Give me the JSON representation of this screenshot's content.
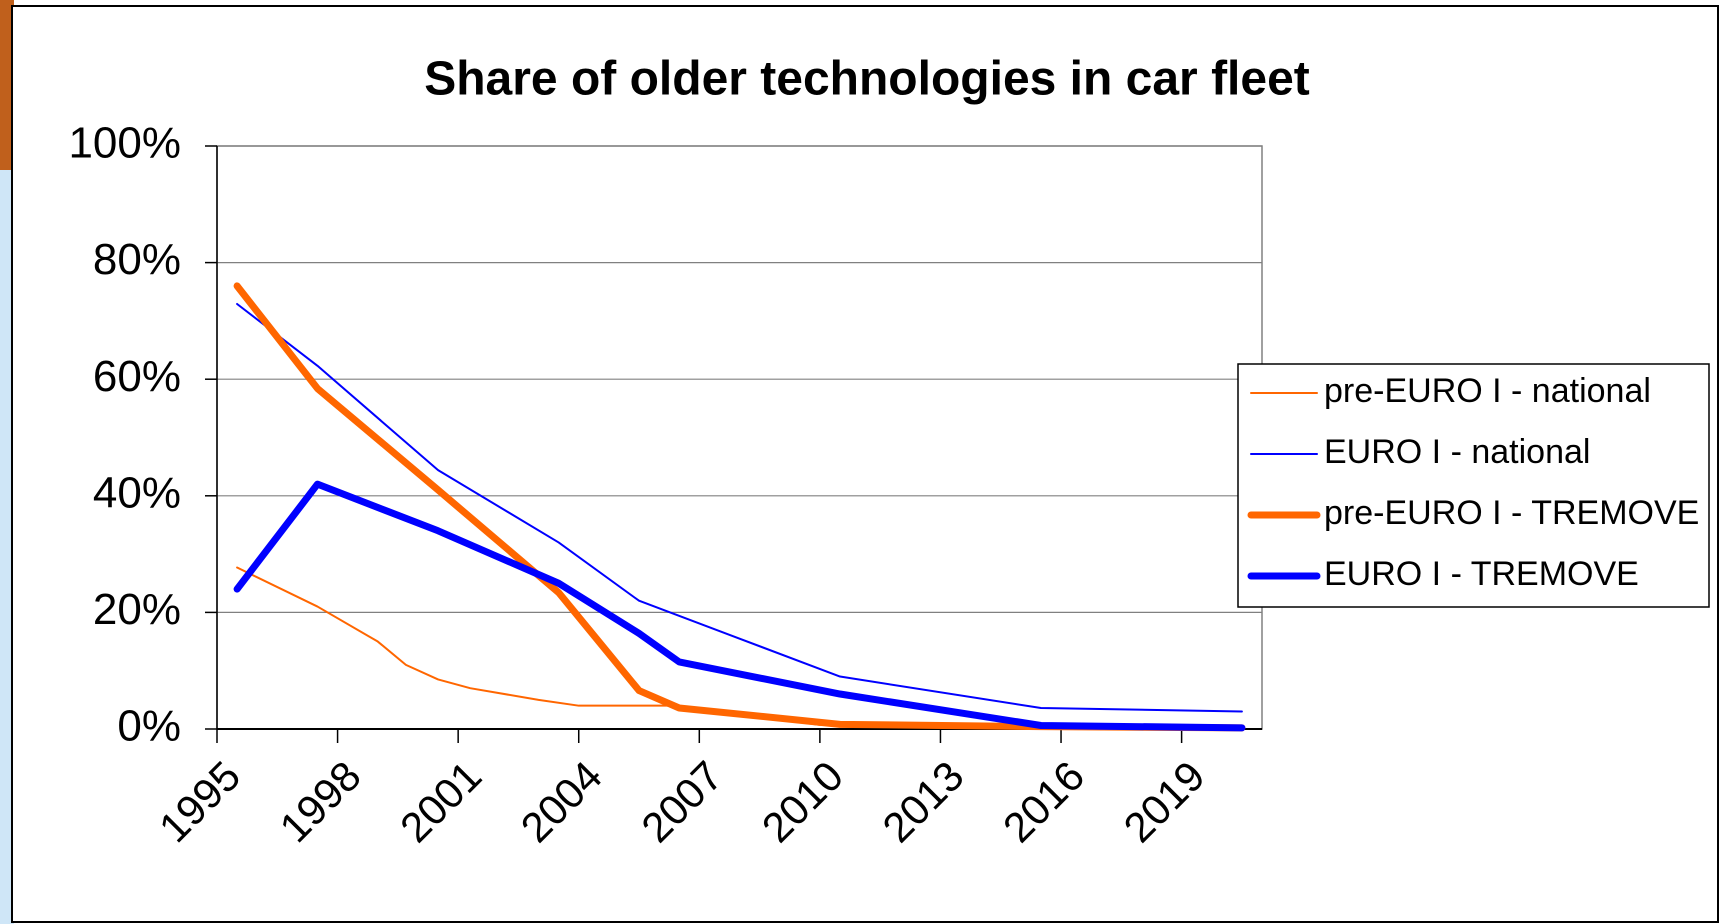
{
  "chart_data": {
    "type": "line",
    "title": "Share of older technologies in car fleet",
    "xlim": [
      1995,
      2021
    ],
    "xticks": [
      1995,
      1998,
      2001,
      2004,
      2007,
      2010,
      2013,
      2016,
      2019
    ],
    "ylim": [
      0,
      100
    ],
    "yticks": [
      {
        "value": 0,
        "label": "0%"
      },
      {
        "value": 20,
        "label": "20%"
      },
      {
        "value": 40,
        "label": "40%"
      },
      {
        "value": 60,
        "label": "60%"
      },
      {
        "value": 80,
        "label": "80%"
      },
      {
        "value": 100,
        "label": "100%"
      }
    ],
    "grid": true,
    "legend": "right",
    "series": [
      {
        "name": "pre-EURO I - national",
        "color": "#ff6600",
        "line_style": "thin",
        "x": [
          1995.5,
          1997.5,
          1999,
          1999.7,
          2000.5,
          2001.3,
          2003,
          2004,
          2006.2,
          2007,
          2010,
          2016,
          2020.5
        ],
        "values": [
          27.7,
          21,
          15,
          11,
          8.5,
          7,
          5,
          4,
          4,
          3.4,
          0.7,
          0.2,
          0
        ]
      },
      {
        "name": "EURO I - national",
        "color": "#0000ff",
        "line_style": "thin",
        "x": [
          1995.5,
          1997.5,
          2000.5,
          2003.5,
          2005.5,
          2010.5,
          2015.5,
          2020.5
        ],
        "values": [
          72.9,
          62.3,
          44.4,
          32,
          22,
          9,
          3.6,
          3
        ]
      },
      {
        "name": "pre-EURO I - TREMOVE",
        "color": "#ff6600",
        "line_style": "thick",
        "x": [
          1995.5,
          1997.5,
          2000.5,
          2003.5,
          2005.5,
          2006.5,
          2010.5,
          2015.5,
          2020.5
        ],
        "values": [
          76,
          58.4,
          41,
          23.4,
          6.6,
          3.6,
          0.8,
          0.4,
          0.2
        ]
      },
      {
        "name": "EURO I - TREMOVE",
        "color": "#0000ff",
        "line_style": "thick",
        "x": [
          1995.5,
          1997.5,
          2000.5,
          2003.5,
          2005.5,
          2006.5,
          2010.5,
          2015.5,
          2020.5
        ],
        "values": [
          24,
          42,
          34,
          25,
          16.4,
          11.5,
          6,
          0.6,
          0.2
        ]
      }
    ]
  }
}
